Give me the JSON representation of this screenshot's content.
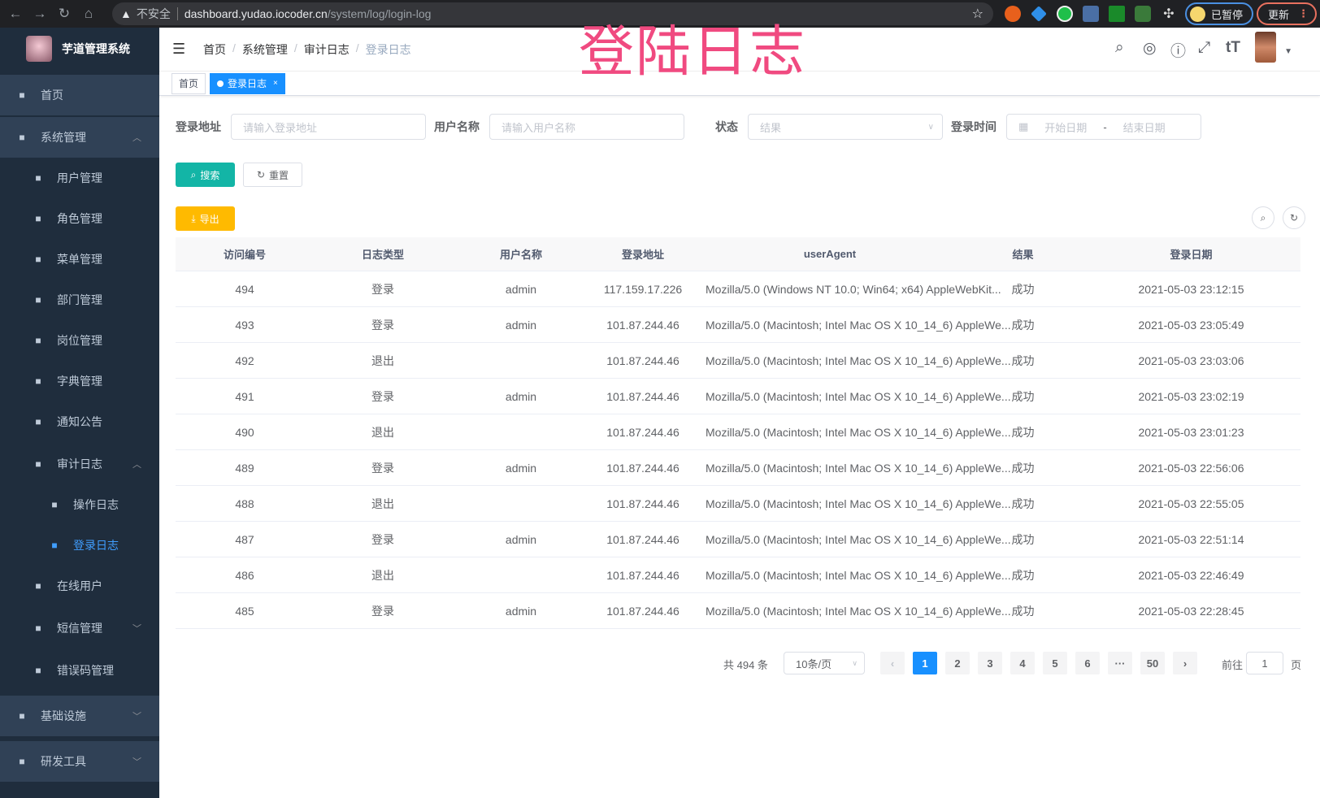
{
  "browser": {
    "security": "不安全",
    "host": "dashboard.yudao.iocoder.cn",
    "path": "/system/log/login-log",
    "paused": "已暂停",
    "update": "更新"
  },
  "overlay_title": "登陆日志",
  "sidebar": {
    "title": "芋道管理系统",
    "items": [
      {
        "label": "首页",
        "icon": "dashboard-icon"
      },
      {
        "label": "系统管理",
        "icon": "gear-icon",
        "chev": "^"
      },
      {
        "label": "用户管理",
        "icon": "user-icon"
      },
      {
        "label": "角色管理",
        "icon": "role-icon"
      },
      {
        "label": "菜单管理",
        "icon": "menu-icon"
      },
      {
        "label": "部门管理",
        "icon": "tree-icon"
      },
      {
        "label": "岗位管理",
        "icon": "post-icon"
      },
      {
        "label": "字典管理",
        "icon": "dict-icon"
      },
      {
        "label": "通知公告",
        "icon": "message-icon"
      },
      {
        "label": "审计日志",
        "icon": "edit-icon",
        "chev": "^"
      },
      {
        "label": "操作日志",
        "icon": "form-icon"
      },
      {
        "label": "登录日志",
        "icon": "logininfor-icon"
      },
      {
        "label": "在线用户",
        "icon": "online-icon"
      },
      {
        "label": "短信管理",
        "icon": "shield-icon",
        "chev": "v"
      },
      {
        "label": "错误码管理",
        "icon": "code-icon"
      },
      {
        "label": "基础设施",
        "icon": "monitor-icon",
        "chev": "v"
      },
      {
        "label": "研发工具",
        "icon": "tool-icon",
        "chev": "v"
      }
    ]
  },
  "breadcrumb": [
    "首页",
    "系统管理",
    "审计日志",
    "登录日志"
  ],
  "tags": [
    {
      "label": "首页"
    },
    {
      "label": "登录日志"
    }
  ],
  "form": {
    "ip_label": "登录地址",
    "ip_placeholder": "请输入登录地址",
    "user_label": "用户名称",
    "user_placeholder": "请输入用户名称",
    "status_label": "状态",
    "status_placeholder": "结果",
    "time_label": "登录时间",
    "start_placeholder": "开始日期",
    "sep": "-",
    "end_placeholder": "结束日期"
  },
  "buttons": {
    "search": "搜索",
    "reset": "重置",
    "export": "导出"
  },
  "colors": {
    "primary": "#1890ff",
    "search": "#13b5a6",
    "export": "#ffba00",
    "sidebar": "#1f2d3d",
    "overlay": "#f04a80"
  },
  "table": {
    "columns": [
      "访问编号",
      "日志类型",
      "用户名称",
      "登录地址",
      "userAgent",
      "结果",
      "登录日期"
    ],
    "rows": [
      [
        "494",
        "登录",
        "admin",
        "117.159.17.226",
        "Mozilla/5.0 (Windows NT 10.0; Win64; x64) AppleWebKit...",
        "成功",
        "2021-05-03 23:12:15"
      ],
      [
        "493",
        "登录",
        "admin",
        "101.87.244.46",
        "Mozilla/5.0 (Macintosh; Intel Mac OS X 10_14_6) AppleWe...",
        "成功",
        "2021-05-03 23:05:49"
      ],
      [
        "492",
        "退出",
        "",
        "101.87.244.46",
        "Mozilla/5.0 (Macintosh; Intel Mac OS X 10_14_6) AppleWe...",
        "成功",
        "2021-05-03 23:03:06"
      ],
      [
        "491",
        "登录",
        "admin",
        "101.87.244.46",
        "Mozilla/5.0 (Macintosh; Intel Mac OS X 10_14_6) AppleWe...",
        "成功",
        "2021-05-03 23:02:19"
      ],
      [
        "490",
        "退出",
        "",
        "101.87.244.46",
        "Mozilla/5.0 (Macintosh; Intel Mac OS X 10_14_6) AppleWe...",
        "成功",
        "2021-05-03 23:01:23"
      ],
      [
        "489",
        "登录",
        "admin",
        "101.87.244.46",
        "Mozilla/5.0 (Macintosh; Intel Mac OS X 10_14_6) AppleWe...",
        "成功",
        "2021-05-03 22:56:06"
      ],
      [
        "488",
        "退出",
        "",
        "101.87.244.46",
        "Mozilla/5.0 (Macintosh; Intel Mac OS X 10_14_6) AppleWe...",
        "成功",
        "2021-05-03 22:55:05"
      ],
      [
        "487",
        "登录",
        "admin",
        "101.87.244.46",
        "Mozilla/5.0 (Macintosh; Intel Mac OS X 10_14_6) AppleWe...",
        "成功",
        "2021-05-03 22:51:14"
      ],
      [
        "486",
        "退出",
        "",
        "101.87.244.46",
        "Mozilla/5.0 (Macintosh; Intel Mac OS X 10_14_6) AppleWe...",
        "成功",
        "2021-05-03 22:46:49"
      ],
      [
        "485",
        "登录",
        "admin",
        "101.87.244.46",
        "Mozilla/5.0 (Macintosh; Intel Mac OS X 10_14_6) AppleWe...",
        "成功",
        "2021-05-03 22:28:45"
      ]
    ]
  },
  "pagination": {
    "total": "共 494 条",
    "page_size": "10条/页",
    "pages": [
      "1",
      "2",
      "3",
      "4",
      "5",
      "6",
      "···",
      "50"
    ],
    "current": "1",
    "goto_label": "前往",
    "goto_value": "1",
    "page_suffix": "页"
  }
}
